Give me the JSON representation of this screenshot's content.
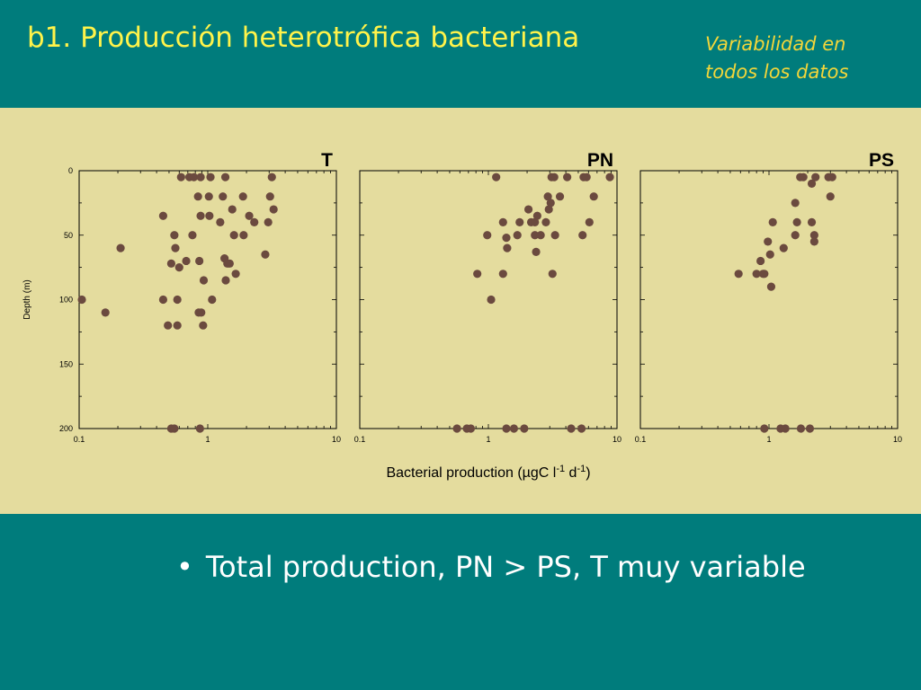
{
  "slide": {
    "title": "b1. Producción heterotrófica bacteriana",
    "note_line1": "Variabilidad en",
    "note_line2": "todos los datos",
    "bullet_marker": "•",
    "bullet_text": "Total production,  PN > PS, T muy variable"
  },
  "chart_data": {
    "type": "scatter",
    "xlabel": "Bacterial production (µgC l-1 d-1)",
    "ylabel": "Depth (m)",
    "x_scale": "log",
    "xlim": [
      0.1,
      10
    ],
    "ylim": [
      0,
      200
    ],
    "y_inverted": true,
    "x_ticks": [
      "0.1",
      "1",
      "10"
    ],
    "y_ticks": [
      "0",
      "50",
      "100",
      "150",
      "200"
    ],
    "grid": false,
    "marker_color": "#6b4a3f",
    "panels": [
      {
        "title": "T",
        "points": [
          [
            0.62,
            5
          ],
          [
            0.72,
            5
          ],
          [
            0.78,
            5
          ],
          [
            0.88,
            5
          ],
          [
            1.05,
            5
          ],
          [
            1.37,
            5
          ],
          [
            3.15,
            5
          ],
          [
            0.84,
            20
          ],
          [
            1.02,
            20
          ],
          [
            1.31,
            20
          ],
          [
            1.88,
            20
          ],
          [
            3.05,
            20
          ],
          [
            0.45,
            35
          ],
          [
            0.88,
            35
          ],
          [
            1.03,
            35
          ],
          [
            1.55,
            30
          ],
          [
            2.1,
            35
          ],
          [
            3.25,
            30
          ],
          [
            1.25,
            40
          ],
          [
            2.3,
            40
          ],
          [
            2.95,
            40
          ],
          [
            0.55,
            50
          ],
          [
            0.76,
            50
          ],
          [
            1.6,
            50
          ],
          [
            1.9,
            50
          ],
          [
            0.21,
            60
          ],
          [
            0.56,
            60
          ],
          [
            0.52,
            72
          ],
          [
            0.6,
            75
          ],
          [
            0.68,
            70
          ],
          [
            0.86,
            70
          ],
          [
            1.35,
            68
          ],
          [
            1.42,
            72
          ],
          [
            1.48,
            72
          ],
          [
            2.8,
            65
          ],
          [
            1.65,
            80
          ],
          [
            0.93,
            85
          ],
          [
            1.38,
            85
          ],
          [
            0.105,
            100
          ],
          [
            0.45,
            100
          ],
          [
            0.58,
            100
          ],
          [
            1.08,
            100
          ],
          [
            0.16,
            110
          ],
          [
            0.85,
            110
          ],
          [
            0.89,
            110
          ],
          [
            0.49,
            120
          ],
          [
            0.58,
            120
          ],
          [
            0.92,
            120
          ],
          [
            0.52,
            200
          ],
          [
            0.55,
            200
          ],
          [
            0.87,
            200
          ]
        ]
      },
      {
        "title": "PN",
        "points": [
          [
            1.15,
            5
          ],
          [
            3.1,
            5
          ],
          [
            3.25,
            5
          ],
          [
            4.1,
            5
          ],
          [
            5.5,
            5
          ],
          [
            5.8,
            5
          ],
          [
            8.8,
            5
          ],
          [
            2.9,
            20
          ],
          [
            3.6,
            20
          ],
          [
            6.6,
            20
          ],
          [
            2.05,
            30
          ],
          [
            2.4,
            35
          ],
          [
            2.95,
            30
          ],
          [
            3.05,
            25
          ],
          [
            1.3,
            40
          ],
          [
            1.75,
            40
          ],
          [
            2.15,
            40
          ],
          [
            2.3,
            40
          ],
          [
            2.8,
            40
          ],
          [
            6.1,
            40
          ],
          [
            0.98,
            50
          ],
          [
            1.38,
            52
          ],
          [
            1.68,
            50
          ],
          [
            2.3,
            50
          ],
          [
            2.55,
            50
          ],
          [
            3.3,
            50
          ],
          [
            5.4,
            50
          ],
          [
            1.4,
            60
          ],
          [
            2.35,
            63
          ],
          [
            0.82,
            80
          ],
          [
            1.3,
            80
          ],
          [
            3.15,
            80
          ],
          [
            1.05,
            100
          ],
          [
            0.57,
            200
          ],
          [
            0.68,
            200
          ],
          [
            0.73,
            200
          ],
          [
            1.38,
            200
          ],
          [
            1.58,
            200
          ],
          [
            1.9,
            200
          ],
          [
            4.4,
            200
          ],
          [
            5.3,
            200
          ]
        ]
      },
      {
        "title": "PS",
        "points": [
          [
            1.75,
            5
          ],
          [
            1.85,
            5
          ],
          [
            2.15,
            10
          ],
          [
            2.3,
            5
          ],
          [
            2.9,
            5
          ],
          [
            3.1,
            5
          ],
          [
            3.0,
            20
          ],
          [
            1.6,
            25
          ],
          [
            1.07,
            40
          ],
          [
            1.65,
            40
          ],
          [
            2.15,
            40
          ],
          [
            1.6,
            50
          ],
          [
            2.25,
            50
          ],
          [
            2.25,
            55
          ],
          [
            0.98,
            55
          ],
          [
            1.3,
            60
          ],
          [
            1.02,
            65
          ],
          [
            0.86,
            70
          ],
          [
            0.58,
            80
          ],
          [
            0.8,
            80
          ],
          [
            0.9,
            80
          ],
          [
            0.92,
            80
          ],
          [
            1.04,
            90
          ],
          [
            0.92,
            200
          ],
          [
            1.23,
            200
          ],
          [
            1.34,
            200
          ],
          [
            1.77,
            200
          ],
          [
            2.08,
            200
          ]
        ]
      }
    ]
  }
}
